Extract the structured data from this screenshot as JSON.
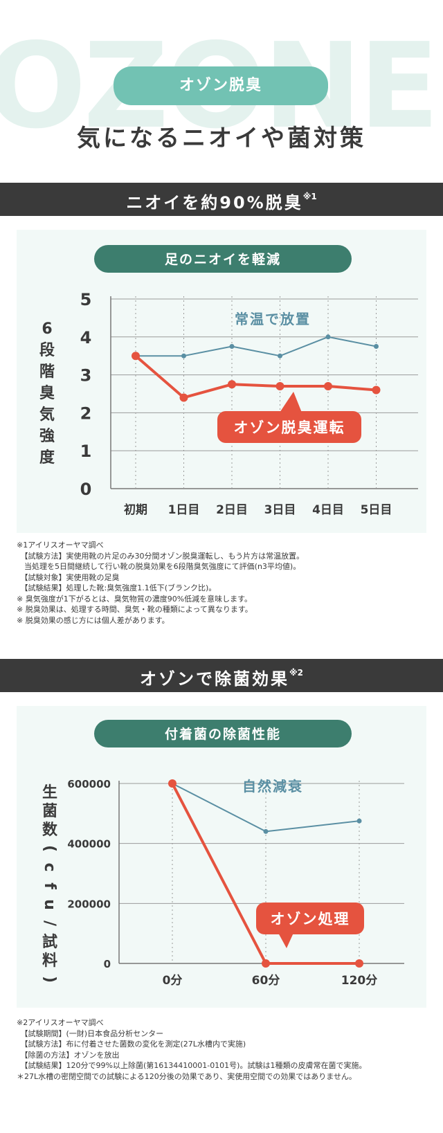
{
  "hero": {
    "watermark": "OZONE",
    "pill": "オゾン脱臭",
    "title": "気になるニオイや菌対策"
  },
  "section1": {
    "band": "ニオイを約90%脱臭",
    "band_sup": "※1"
  },
  "section2": {
    "band": "オゾンで除菌効果",
    "band_sup": "※2"
  },
  "colors": {
    "teal_series": "#5a8fa3",
    "red_series": "#e5533f",
    "pill_dark": "#3d7e6e",
    "pill_light": "#72c2b3",
    "band": "#3a3a3a"
  },
  "chart_data": [
    {
      "type": "line",
      "title": "足のニオイを軽減",
      "ylabel": "6段階臭気強度",
      "categories": [
        "初期",
        "1日目",
        "2日目",
        "3日目",
        "4日目",
        "5日目"
      ],
      "ylim": [
        0,
        5
      ],
      "yticks": [
        "0",
        "1",
        "2",
        "3",
        "4",
        "5"
      ],
      "grid": true,
      "series": [
        {
          "name": "常温で放置",
          "values": [
            3.5,
            3.5,
            3.75,
            3.5,
            4.0,
            3.75
          ]
        },
        {
          "name": "オゾン脱臭運転",
          "values": [
            3.5,
            2.4,
            2.75,
            2.7,
            2.7,
            2.6
          ]
        }
      ]
    },
    {
      "type": "line",
      "title": "付着菌の除菌性能",
      "ylabel": "生菌数(cfu/試料)",
      "categories": [
        "0分",
        "60分",
        "120分"
      ],
      "ylim": [
        0,
        600000
      ],
      "yticks": [
        "0",
        "200000",
        "400000",
        "600000"
      ],
      "grid": true,
      "series": [
        {
          "name": "自然減衰",
          "values": [
            600000,
            440000,
            475000
          ]
        },
        {
          "name": "オゾン処理",
          "values": [
            600000,
            0,
            0
          ]
        }
      ]
    }
  ],
  "notes1": [
    "※1アイリスオーヤマ調べ",
    "　【試験方法】実使用靴の片足のみ30分間オゾン脱臭運転し、もう片方は常温放置。",
    "　当処理を5日間継続して行い靴の脱臭効果を6段階臭気強度にて評価(n3平均値)。",
    "　【試験対象】実使用靴の足臭",
    "　【試験結果】処理した靴:臭気強度1.1低下(ブランク比)。",
    "※ 臭気強度が1下がるとは、臭気物質の濃度90%低減を意味します。",
    "※ 脱臭効果は、処理する時間、臭気・靴の種類によって異なります。",
    "※ 脱臭効果の感じ方には個人差があります。"
  ],
  "notes2": [
    "※2アイリスオーヤマ調べ",
    "　【試験期間】(一財)日本食品分析センター",
    "　【試験方法】布に付着させた菌数の変化を測定(27L水槽内で実施)",
    "　【除菌の方法】オゾンを放出",
    "　【試験結果】120分で99%以上除菌(第16134410001-0101号)。試験は1種類の皮膚常在菌で実施。",
    "＊27L水槽の密閉空間での試験による120分後の効果であり、実使用空間での効果ではありません。"
  ]
}
